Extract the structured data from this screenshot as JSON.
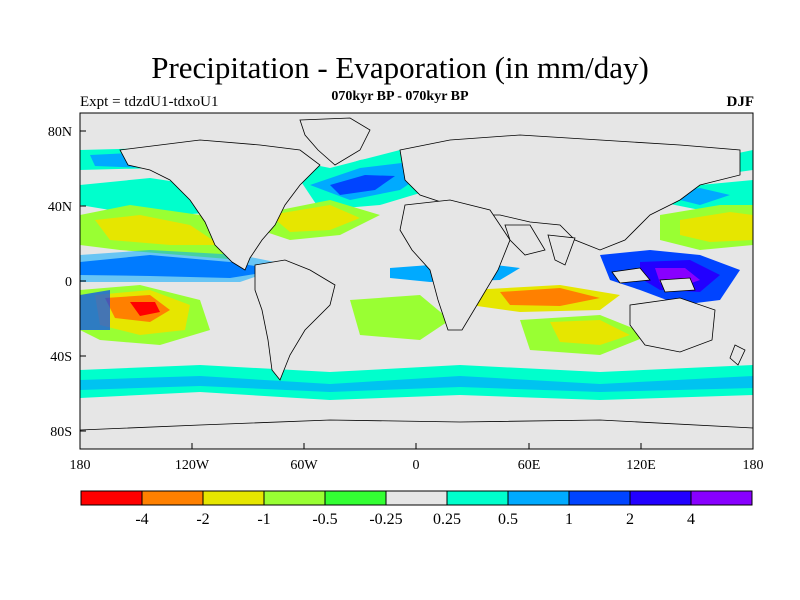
{
  "title": "Precipitation - Evaporation (in mm/day)",
  "subtitle": "070kyr BP - 070kyr BP",
  "experiment_label": "Expt = tdzdU1-tdxoU1",
  "season_label": "DJF",
  "axes": {
    "x_ticks": [
      "180",
      "120W",
      "60W",
      "0",
      "60E",
      "120E",
      "180"
    ],
    "y_ticks": [
      "80N",
      "40N",
      "0",
      "40S",
      "80S"
    ]
  },
  "colorbar": {
    "labels": [
      "-4",
      "-2",
      "-1",
      "-0.5",
      "-0.25",
      "0.25",
      "0.5",
      "1",
      "2",
      "4"
    ],
    "colors": [
      "#ff0000",
      "#ff8000",
      "#e6e600",
      "#99ff33",
      "#33ff33",
      "#e6e6e6",
      "#00ffcc",
      "#00aaff",
      "#0044ff",
      "#2200ff",
      "#8800ff"
    ]
  },
  "colors": {
    "land_neutral": "#e6e6e6",
    "coastline": "#000000"
  }
}
